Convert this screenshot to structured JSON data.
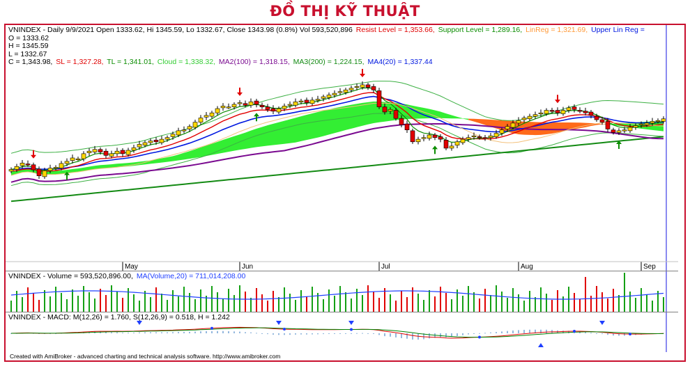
{
  "page_title": "ĐỒ THỊ KỸ THUẬT",
  "colors": {
    "up_candle": "#ffd700",
    "down_candle": "#e10000",
    "ma_blue": "#0018e0",
    "ma_purple": "#7a0a90",
    "ma_green": "#138a13",
    "tl_green": "#0a8c00",
    "cloud_green": "#33ee33",
    "cloud_orange": "#ff6a1a",
    "volume_up": "#14a014",
    "volume_down": "#e00000",
    "volume_ma": "#1f3fff",
    "macd_line": "#e00000",
    "signal_line": "#008000",
    "histogram": "#7aa7d6"
  },
  "price_legend": {
    "line1": {
      "title": "VNINDEX - Daily 9/9/2021 Open 1333.62, Hi 1345.59, Lo 1332.67, Close 1343.98 (0.8%) Vol 593,520,896",
      "resist": "Resist Level = 1,353.66,",
      "support": "Support Level = 1,289.16,",
      "linreg": "LinReg = 1,321.69,",
      "upper": "Upper Lin Reg ="
    },
    "ohlc": [
      "O = 1333.62",
      "H = 1345.59",
      "L = 1332.67"
    ],
    "line5": {
      "c": "C = 1,343.98,",
      "sl": "SL = 1,327.28,",
      "tl": "TL = 1,341.01,",
      "cloud": "Cloud = 1,338.32,",
      "ma2": "MA2(100) = 1,318.15,",
      "ma3": "MA3(200) = 1,224.15,",
      "ma4": "MA4(20) = 1,337.44"
    }
  },
  "x_axis": {
    "months": [
      {
        "label": "May",
        "index": 20
      },
      {
        "label": "Jun",
        "index": 41
      },
      {
        "label": "Jul",
        "index": 66
      },
      {
        "label": "Aug",
        "index": 91
      },
      {
        "label": "Sep",
        "index": 113
      }
    ]
  },
  "volume_legend": {
    "label": "VNINDEX - Volume = 593,520,896.00,",
    "ma": "MA(Volume,20) = 711,014,208.00"
  },
  "macd_legend": {
    "label": "VNINDEX - MACD: M(12,26) = 1.760, S(12,26,9) = 0.518, H = 1.242"
  },
  "footer": "Created with AmiBroker - advanced charting and technical analysis software. http://www.amibroker.com",
  "chart_data": {
    "type": "candlestick",
    "ticker": "VNINDEX",
    "ylim": [
      1000,
      1450
    ],
    "closes": [
      1225,
      1232,
      1240,
      1236,
      1224,
      1210,
      1222,
      1228,
      1230,
      1239,
      1244,
      1252,
      1250,
      1262,
      1268,
      1272,
      1266,
      1258,
      1262,
      1268,
      1262,
      1270,
      1276,
      1284,
      1288,
      1292,
      1290,
      1296,
      1300,
      1308,
      1316,
      1318,
      1326,
      1336,
      1346,
      1352,
      1358,
      1368,
      1374,
      1372,
      1378,
      1382,
      1376,
      1384,
      1378,
      1372,
      1366,
      1362,
      1368,
      1374,
      1378,
      1384,
      1386,
      1382,
      1388,
      1390,
      1396,
      1400,
      1404,
      1408,
      1412,
      1416,
      1420,
      1424,
      1418,
      1412,
      1372,
      1360,
      1366,
      1345,
      1330,
      1318,
      1290,
      1296,
      1300,
      1306,
      1300,
      1296,
      1275,
      1280,
      1290,
      1296,
      1300,
      1304,
      1300,
      1298,
      1304,
      1310,
      1318,
      1326,
      1334,
      1340,
      1346,
      1350,
      1354,
      1358,
      1364,
      1362,
      1358,
      1364,
      1370,
      1366,
      1362,
      1358,
      1352,
      1342,
      1336,
      1320,
      1312,
      1316,
      1318,
      1324,
      1328,
      1332,
      1334,
      1338,
      1340,
      1344
    ],
    "series": [
      {
        "name": "MA2(100)",
        "last": 1318.15
      },
      {
        "name": "MA3(200)",
        "last": 1224.15
      },
      {
        "name": "MA4(20)",
        "last": 1337.44
      }
    ],
    "volume": {
      "last": 593520896,
      "ma20": 711014208
    },
    "macd": {
      "m": 1.76,
      "s": 0.518,
      "h": 1.242
    }
  }
}
